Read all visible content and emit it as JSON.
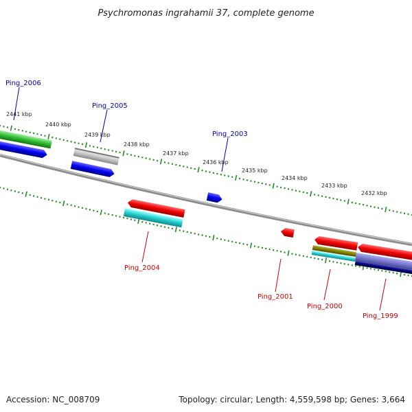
{
  "title": "Psychromonas ingrahamii 37, complete genome",
  "footer": {
    "accession": "Accession: NC_008709",
    "summary": "Topology: circular; Length: 4,559,598 bp; Genes: 3,664"
  },
  "colors": {
    "forward_label": "#0000aa",
    "reverse_label": "#cc0000",
    "tick": "#228B22",
    "backbone": "#808080"
  },
  "kbp_labels": [
    "2441 kbp",
    "2440 kbp",
    "2439 kbp",
    "2438 kbp",
    "2437 kbp",
    "2436 kbp",
    "2435 kbp",
    "2434 kbp",
    "2433 kbp",
    "2432 kbp"
  ],
  "gene_labels": {
    "ping_2006": "Ping_2006",
    "ping_2005": "Ping_2005",
    "ping_2003": "Ping_2003",
    "ping_2004": "Ping_2004",
    "ping_2001": "Ping_2001",
    "ping_2000": "Ping_2000",
    "ping_1999": "Ping_1999"
  }
}
